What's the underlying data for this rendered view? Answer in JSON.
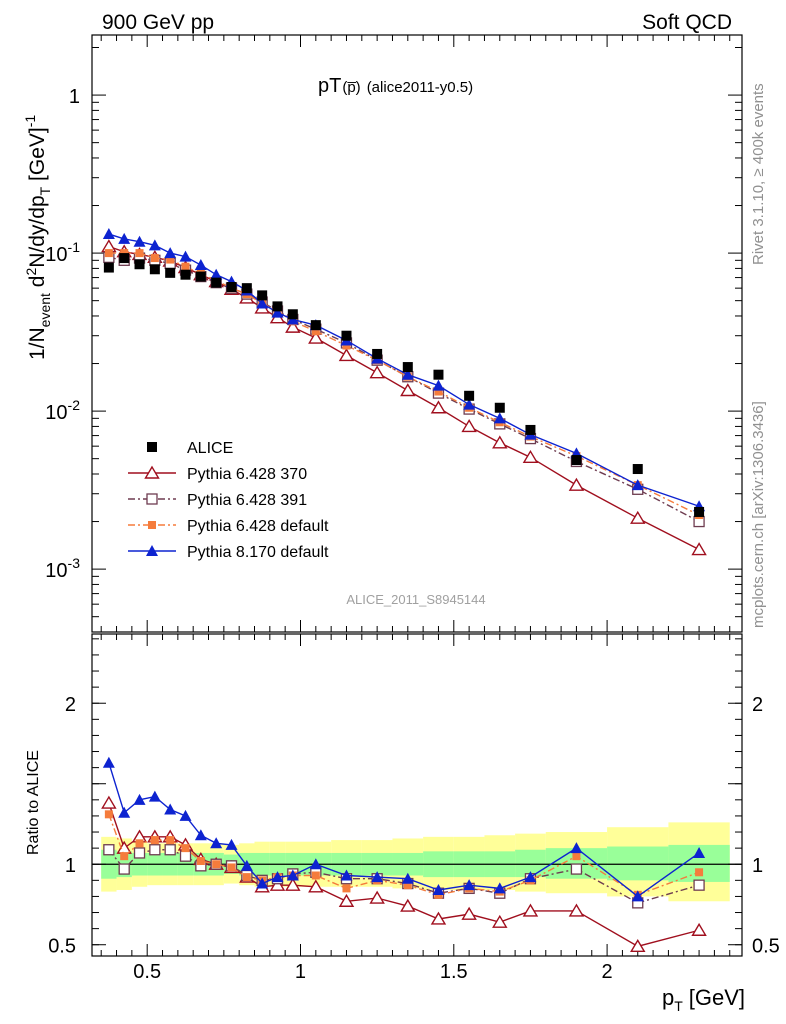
{
  "header": {
    "left": "900 GeV pp",
    "right": "Soft QCD"
  },
  "title": {
    "main": "pT",
    "sub": "(p̅)",
    "tag": "(alice2011-y0.5)"
  },
  "watermark": "ALICE_2011_S8945144",
  "side": {
    "rivet": "Rivet 3.1.10, ≥ 400k events",
    "mcplots": "mcplots.cern.ch [arXiv:1306.3436]"
  },
  "axes": {
    "xlabel": "p",
    "xlabel_sub": "T",
    "xlabel_unit": "[GeV]",
    "ylabel_top": "1/N_event d²N/dy/dp_T [GeV]^-1",
    "ylabel_bottom": "Ratio to ALICE"
  },
  "colors": {
    "alice": "#000000",
    "p370": "#a00f1e",
    "p391": "#6e3c50",
    "pdef": "#f57c3c",
    "p8": "#0d23d0",
    "band_inner": "#99ff99",
    "band_outer": "#ffff99"
  },
  "chart_data": [
    {
      "type": "scatter",
      "panel": "main",
      "yscale": "log",
      "xlim": [
        0.32,
        2.44
      ],
      "ylim": [
        0.0004,
        2.4
      ],
      "x_ticks": [
        "0.5",
        "1",
        "1.5",
        "2"
      ],
      "y_ticks": [
        "1",
        "10^-1",
        "10^-2",
        "10^-3"
      ],
      "legend": {
        "position": "bottom-left",
        "entries": [
          "ALICE",
          "Pythia 6.428 370",
          "Pythia 6.428 391",
          "Pythia 6.428 default",
          "Pythia 8.170 default"
        ]
      },
      "x": [
        0.375,
        0.425,
        0.475,
        0.525,
        0.575,
        0.625,
        0.675,
        0.725,
        0.775,
        0.825,
        0.875,
        0.925,
        0.975,
        1.05,
        1.15,
        1.25,
        1.35,
        1.45,
        1.55,
        1.65,
        1.75,
        1.9,
        2.1,
        2.3
      ],
      "series": [
        {
          "name": "ALICE",
          "marker": "filled-square",
          "values": [
            0.081,
            0.093,
            0.085,
            0.079,
            0.075,
            0.073,
            0.071,
            0.065,
            0.061,
            0.06,
            0.054,
            0.046,
            0.041,
            0.035,
            0.03,
            0.023,
            0.019,
            0.017,
            0.0125,
            0.0105,
            0.0076,
            0.0049,
            0.0043,
            0.0023
          ]
        },
        {
          "name": "Pythia 6.428 370",
          "marker": "open-triangle",
          "line": "solid",
          "values": [
            0.11,
            0.102,
            0.098,
            0.094,
            0.089,
            0.081,
            0.073,
            0.066,
            0.059,
            0.052,
            0.045,
            0.039,
            0.034,
            0.029,
            0.0225,
            0.0175,
            0.0135,
            0.0105,
            0.008,
            0.0063,
            0.0051,
            0.0034,
            0.0021,
            0.00133
          ]
        },
        {
          "name": "Pythia 6.428 391",
          "marker": "open-square",
          "line": "dash-dot",
          "values": [
            0.094,
            0.09,
            0.093,
            0.09,
            0.086,
            0.078,
            0.071,
            0.065,
            0.06,
            0.055,
            0.049,
            0.043,
            0.038,
            0.033,
            0.027,
            0.021,
            0.0165,
            0.013,
            0.0103,
            0.0083,
            0.0067,
            0.0048,
            0.0032,
            0.002
          ]
        },
        {
          "name": "Pythia 6.428 default",
          "marker": "filled-small-square",
          "line": "dash-dot",
          "values": [
            0.1,
            0.1,
            0.1,
            0.093,
            0.091,
            0.082,
            0.074,
            0.067,
            0.06,
            0.055,
            0.048,
            0.043,
            0.037,
            0.032,
            0.026,
            0.021,
            0.0165,
            0.0133,
            0.0105,
            0.0085,
            0.0069,
            0.0052,
            0.0034,
            0.0022
          ]
        },
        {
          "name": "Pythia 8.170 default",
          "marker": "filled-triangle",
          "line": "solid",
          "values": [
            0.132,
            0.123,
            0.118,
            0.112,
            0.1,
            0.095,
            0.084,
            0.073,
            0.066,
            0.058,
            0.048,
            0.042,
            0.038,
            0.035,
            0.028,
            0.0215,
            0.017,
            0.0145,
            0.011,
            0.009,
            0.0071,
            0.0054,
            0.0034,
            0.0025
          ]
        }
      ]
    },
    {
      "type": "scatter",
      "panel": "ratio",
      "ylabel": "Ratio to ALICE",
      "xlim": [
        0.32,
        2.44
      ],
      "ylim": [
        0.43,
        2.43
      ],
      "x_ticks": [
        "0.5",
        "1",
        "1.5",
        "2"
      ],
      "y_ticks": [
        "2",
        "1",
        "0.5"
      ],
      "x": [
        0.375,
        0.425,
        0.475,
        0.525,
        0.575,
        0.625,
        0.675,
        0.725,
        0.775,
        0.825,
        0.875,
        0.925,
        0.975,
        1.05,
        1.15,
        1.25,
        1.35,
        1.45,
        1.55,
        1.65,
        1.75,
        1.9,
        2.1,
        2.3
      ],
      "band_edges": [
        0.35,
        0.4,
        0.45,
        0.5,
        0.55,
        0.6,
        0.65,
        0.7,
        0.75,
        0.8,
        0.85,
        0.9,
        0.95,
        1.0,
        1.1,
        1.2,
        1.3,
        1.4,
        1.5,
        1.6,
        1.7,
        1.8,
        2.0,
        2.2,
        2.4
      ],
      "band_inner": [
        [
          0.91,
          1.09
        ],
        [
          0.92,
          1.08
        ],
        [
          0.93,
          1.07
        ],
        [
          0.93,
          1.07
        ],
        [
          0.93,
          1.07
        ],
        [
          0.93,
          1.07
        ],
        [
          0.93,
          1.07
        ],
        [
          0.93,
          1.07
        ],
        [
          0.94,
          1.06
        ],
        [
          0.93,
          1.07
        ],
        [
          0.93,
          1.07
        ],
        [
          0.93,
          1.07
        ],
        [
          0.93,
          1.07
        ],
        [
          0.93,
          1.07
        ],
        [
          0.93,
          1.07
        ],
        [
          0.93,
          1.07
        ],
        [
          0.93,
          1.07
        ],
        [
          0.92,
          1.08
        ],
        [
          0.92,
          1.08
        ],
        [
          0.92,
          1.08
        ],
        [
          0.92,
          1.09
        ],
        [
          0.91,
          1.1
        ],
        [
          0.9,
          1.11
        ],
        [
          0.89,
          1.12
        ]
      ],
      "band_outer": [
        [
          0.83,
          1.17
        ],
        [
          0.84,
          1.16
        ],
        [
          0.86,
          1.14
        ],
        [
          0.87,
          1.13
        ],
        [
          0.87,
          1.13
        ],
        [
          0.87,
          1.13
        ],
        [
          0.87,
          1.13
        ],
        [
          0.87,
          1.13
        ],
        [
          0.88,
          1.12
        ],
        [
          0.87,
          1.13
        ],
        [
          0.86,
          1.14
        ],
        [
          0.86,
          1.14
        ],
        [
          0.86,
          1.14
        ],
        [
          0.86,
          1.14
        ],
        [
          0.86,
          1.15
        ],
        [
          0.86,
          1.15
        ],
        [
          0.85,
          1.16
        ],
        [
          0.84,
          1.17
        ],
        [
          0.84,
          1.17
        ],
        [
          0.84,
          1.18
        ],
        [
          0.83,
          1.19
        ],
        [
          0.82,
          1.2
        ],
        [
          0.8,
          1.23
        ],
        [
          0.77,
          1.26
        ]
      ],
      "series": [
        {
          "name": "Pythia 6.428 370",
          "marker": "open-triangle",
          "line": "solid",
          "values": [
            1.38,
            1.1,
            1.17,
            1.17,
            1.17,
            1.12,
            1.03,
            1.0,
            0.98,
            0.92,
            0.86,
            0.87,
            0.87,
            0.86,
            0.77,
            0.79,
            0.74,
            0.66,
            0.69,
            0.64,
            0.71,
            0.71,
            0.49,
            0.59
          ]
        },
        {
          "name": "Pythia 6.428 391",
          "marker": "open-square",
          "line": "dash-dot",
          "values": [
            1.09,
            0.97,
            1.07,
            1.09,
            1.09,
            1.05,
            0.99,
            1.0,
            0.99,
            0.93,
            0.9,
            0.91,
            0.94,
            0.95,
            0.91,
            0.91,
            0.88,
            0.82,
            0.85,
            0.82,
            0.91,
            0.97,
            0.76,
            0.87
          ]
        },
        {
          "name": "Pythia 6.428 default",
          "marker": "filled-small-square",
          "line": "dash-dot",
          "values": [
            1.31,
            1.05,
            1.13,
            1.15,
            1.15,
            1.1,
            1.02,
            1.0,
            0.98,
            0.92,
            0.9,
            0.92,
            0.93,
            0.93,
            0.85,
            0.9,
            0.87,
            0.81,
            0.85,
            0.83,
            0.9,
            1.05,
            0.81,
            0.95
          ]
        },
        {
          "name": "Pythia 8.170 default",
          "marker": "filled-triangle",
          "line": "solid",
          "values": [
            1.63,
            1.32,
            1.4,
            1.42,
            1.34,
            1.3,
            1.18,
            1.13,
            1.12,
            0.99,
            0.88,
            0.92,
            0.93,
            1.0,
            0.93,
            0.92,
            0.91,
            0.84,
            0.87,
            0.85,
            0.92,
            1.1,
            0.8,
            1.07
          ]
        }
      ]
    }
  ]
}
